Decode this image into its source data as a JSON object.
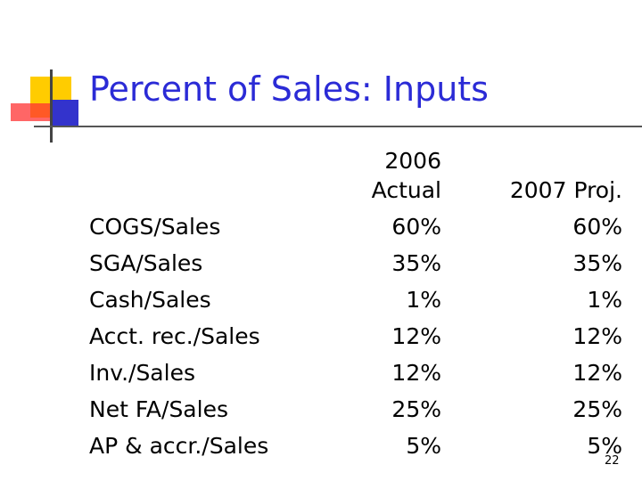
{
  "slide": {
    "title": "Percent of Sales:  Inputs",
    "page_number": "22",
    "colors": {
      "title": "#2b2bd6",
      "ornament_yellow": "#ffcc00",
      "ornament_blue": "#3333cc",
      "ornament_red": "#ff3333"
    }
  },
  "table": {
    "header_2006_line1": "2006",
    "header_2006_line2": "Actual",
    "header_2007": "2007 Proj.",
    "rows": [
      {
        "label": "COGS/Sales",
        "actual_2006": "60%",
        "proj_2007": "60%"
      },
      {
        "label": "SGA/Sales",
        "actual_2006": "35%",
        "proj_2007": "35%"
      },
      {
        "label": "Cash/Sales",
        "actual_2006": "1%",
        "proj_2007": "1%"
      },
      {
        "label": "Acct. rec./Sales",
        "actual_2006": "12%",
        "proj_2007": "12%"
      },
      {
        "label": "Inv./Sales",
        "actual_2006": "12%",
        "proj_2007": "12%"
      },
      {
        "label": "Net FA/Sales",
        "actual_2006": "25%",
        "proj_2007": "25%"
      },
      {
        "label": "AP & accr./Sales",
        "actual_2006": "5%",
        "proj_2007": "5%"
      }
    ]
  }
}
